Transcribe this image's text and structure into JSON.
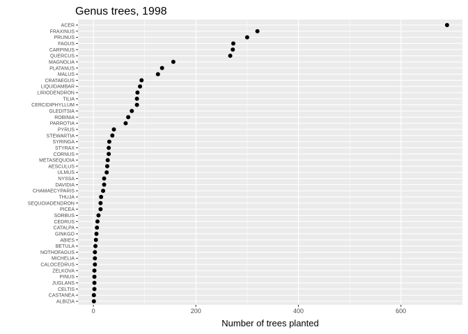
{
  "chart_data": {
    "type": "scatter",
    "title": "Genus trees, 1998",
    "xlabel": "Number of trees planted",
    "ylabel": "",
    "xlim": [
      -30,
      720
    ],
    "xticks": [
      0,
      200,
      400,
      600
    ],
    "grid": true,
    "legend": "none",
    "point_color": "#000000",
    "panel_color": "#ebebeb",
    "grid_color": "#ffffff",
    "categories": [
      "ACER",
      "FRAXINUS",
      "PRUNUS",
      "FAGUS",
      "CARPINUS",
      "QUERCUS",
      "MAGNOLIA",
      "PLATANUS",
      "MALUS",
      "CRATAEGUS",
      "LIQUIDAMBAR",
      "LIRIODENDRON",
      "TILIA",
      "CERCIDIPHYLLUM",
      "GLEDITSIA",
      "ROBINIA",
      "PARROTIA",
      "PYRUS",
      "STEWARTIA",
      "SYRINGA",
      "STYRAX",
      "CORNUS",
      "METASEQUOIA",
      "AESCULUS",
      "ULMUS",
      "NYSSA",
      "DAVIDIA",
      "CHAMAECYPARIS",
      "THUJA",
      "SEQUOIADENDRON",
      "PICEA",
      "SORBUS",
      "CEDRUS",
      "CATALPA",
      "GINKGO",
      "ABIES",
      "BETULA",
      "NOTHOFAGUS",
      "MICHELIA",
      "CALOCEDRUS",
      "ZELKOVA",
      "PINUS",
      "JUGLANS",
      "CELTIS",
      "CASTANEA",
      "ALBIZIA"
    ],
    "values": [
      690,
      320,
      300,
      273,
      272,
      267,
      156,
      134,
      126,
      94,
      91,
      86,
      85,
      85,
      75,
      68,
      63,
      40,
      37,
      31,
      30,
      30,
      28,
      27,
      26,
      21,
      21,
      19,
      15,
      14,
      14,
      10,
      8,
      7,
      6,
      5,
      4,
      3,
      3,
      3,
      2,
      2,
      2,
      2,
      1,
      1
    ]
  }
}
